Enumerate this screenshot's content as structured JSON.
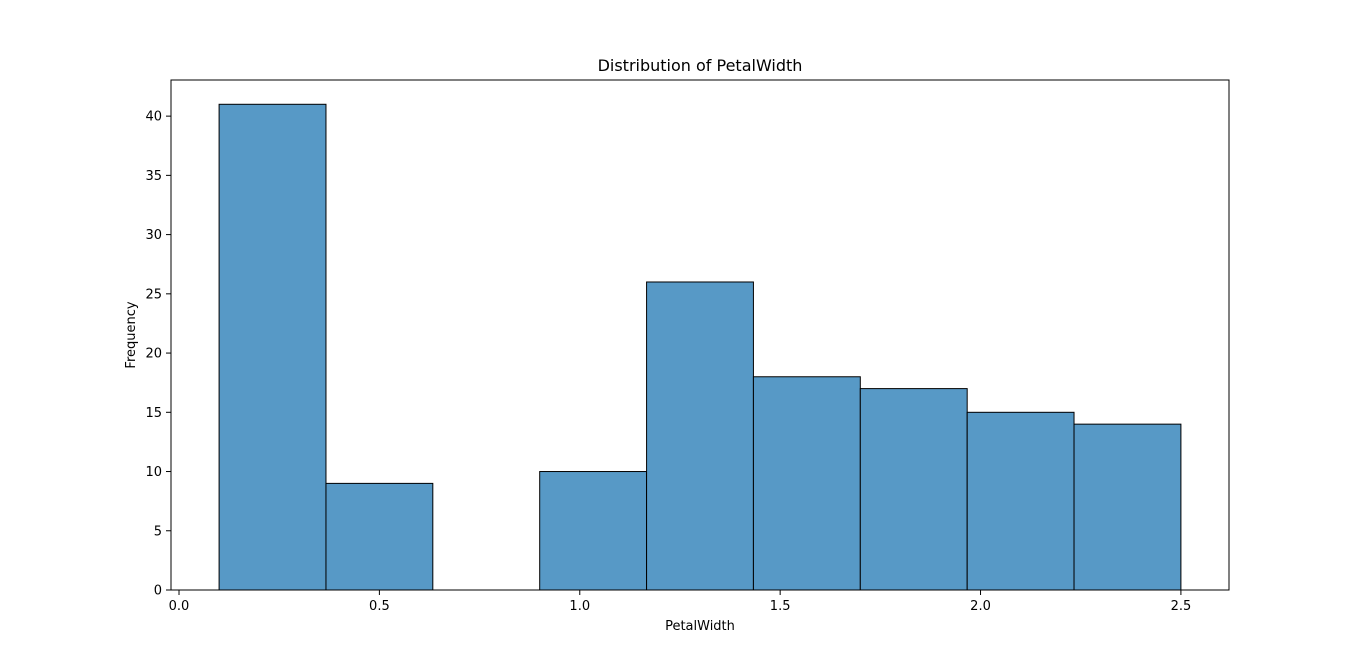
{
  "chart_data": {
    "type": "bar",
    "title": "Distribution of PetalWidth",
    "xlabel": "PetalWidth",
    "ylabel": "Frequency",
    "xlim": [
      -0.02,
      2.62
    ],
    "ylim": [
      0,
      43.05
    ],
    "bins": [
      {
        "start": 0.1,
        "end": 0.3667,
        "count": 41
      },
      {
        "start": 0.3667,
        "end": 0.6333,
        "count": 9
      },
      {
        "start": 0.6333,
        "end": 0.9,
        "count": 0
      },
      {
        "start": 0.9,
        "end": 1.1667,
        "count": 10
      },
      {
        "start": 1.1667,
        "end": 1.4333,
        "count": 26
      },
      {
        "start": 1.4333,
        "end": 1.7,
        "count": 18
      },
      {
        "start": 1.7,
        "end": 1.9667,
        "count": 17
      },
      {
        "start": 1.9667,
        "end": 2.2333,
        "count": 15
      },
      {
        "start": 2.2333,
        "end": 2.5,
        "count": 14
      }
    ],
    "x_ticks": [
      {
        "value": 0.0,
        "label": "0.0"
      },
      {
        "value": 0.5,
        "label": "0.5"
      },
      {
        "value": 1.0,
        "label": "1.0"
      },
      {
        "value": 1.5,
        "label": "1.5"
      },
      {
        "value": 2.0,
        "label": "2.0"
      },
      {
        "value": 2.5,
        "label": "2.5"
      }
    ],
    "y_ticks": [
      {
        "value": 0,
        "label": "0"
      },
      {
        "value": 5,
        "label": "5"
      },
      {
        "value": 10,
        "label": "10"
      },
      {
        "value": 15,
        "label": "15"
      },
      {
        "value": 20,
        "label": "20"
      },
      {
        "value": 25,
        "label": "25"
      },
      {
        "value": 30,
        "label": "30"
      },
      {
        "value": 35,
        "label": "35"
      },
      {
        "value": 40,
        "label": "40"
      }
    ],
    "grid": false,
    "colors": {
      "bar_fill": "#5799c6",
      "bar_edge": "#000000",
      "axes": "#000000",
      "background": "#ffffff"
    }
  }
}
